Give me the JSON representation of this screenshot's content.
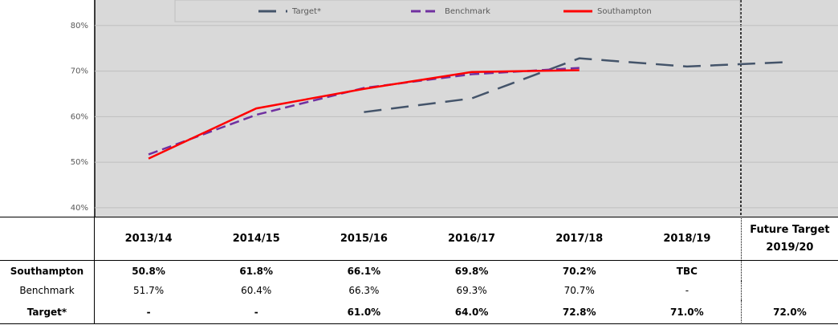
{
  "chart_data": {
    "type": "line",
    "categories": [
      "2013/14",
      "2014/15",
      "2015/16",
      "2016/17",
      "2017/18",
      "2018/19",
      "Future Target 2019/20"
    ],
    "series": [
      {
        "name": "Target*",
        "color": "#44546a",
        "dash": "22 12",
        "values": [
          null,
          null,
          61.0,
          64.0,
          72.8,
          71.0,
          72.0
        ],
        "value_labels": [
          "-",
          "-",
          "61.0%",
          "64.0%",
          "72.8%",
          "71.0%",
          "72.0%"
        ]
      },
      {
        "name": "Benchmark",
        "color": "#7030a0",
        "dash": "12 6",
        "values": [
          51.7,
          60.4,
          66.3,
          69.3,
          70.7,
          null,
          null
        ],
        "value_labels": [
          "51.7%",
          "60.4%",
          "66.3%",
          "69.3%",
          "70.7%",
          "-",
          null
        ]
      },
      {
        "name": "Southampton",
        "color": "#ff0000",
        "dash": null,
        "values": [
          50.8,
          61.8,
          66.1,
          69.8,
          70.2,
          null,
          null
        ],
        "value_labels": [
          "50.8%",
          "61.8%",
          "66.1%",
          "69.8%",
          "70.2%",
          "TBC",
          null
        ]
      }
    ],
    "table_order": [
      2,
      1,
      0
    ],
    "ylim": [
      38.4,
      85.6
    ],
    "yticks": [
      {
        "value": 40,
        "label": "40%"
      },
      {
        "value": 50,
        "label": "50%"
      },
      {
        "value": 60,
        "label": "60%"
      },
      {
        "value": 70,
        "label": "70%"
      },
      {
        "value": 80,
        "label": "80%"
      }
    ],
    "grid": true
  }
}
